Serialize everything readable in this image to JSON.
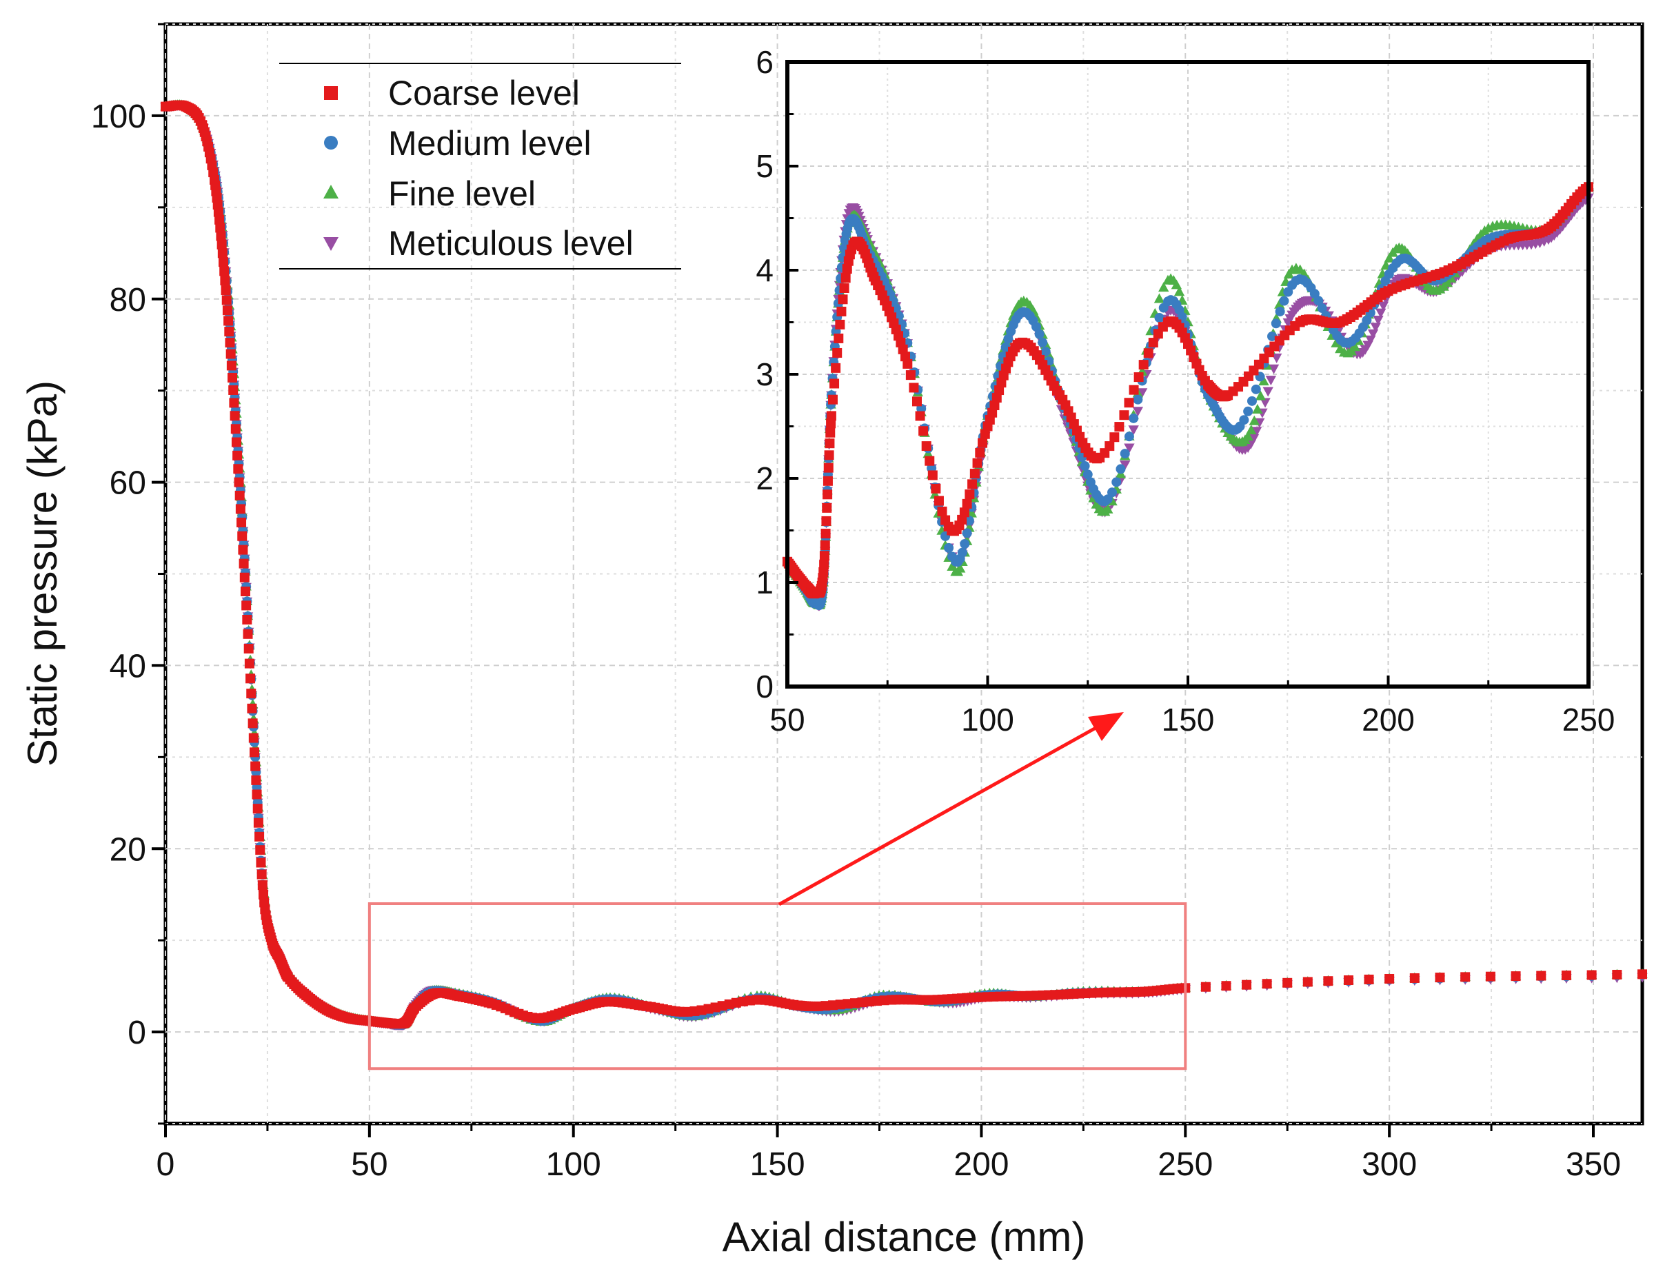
{
  "colors": {
    "coarse": "#e41a1c",
    "medium": "#3a7dc1",
    "fine": "#4db047",
    "meticulous": "#984ea3",
    "zoom_box": "#f08080",
    "arrow": "#ff1a1a"
  },
  "chart_data": [
    {
      "type": "scatter",
      "role": "main",
      "xlabel": "Axial distance (mm)",
      "ylabel": "Static pressure (kPa)",
      "xlim": [
        0,
        362
      ],
      "ylim": [
        -10,
        110
      ],
      "xticks": [
        0,
        50,
        100,
        150,
        200,
        250,
        300,
        350
      ],
      "yticks": [
        0,
        20,
        40,
        60,
        80,
        100
      ],
      "grid": true,
      "legend": {
        "position": "top-left",
        "entries": [
          {
            "key": "coarse",
            "label": "Coarse level",
            "marker": "square"
          },
          {
            "key": "medium",
            "label": "Medium level",
            "marker": "circle"
          },
          {
            "key": "fine",
            "label": "Fine level",
            "marker": "triangle-up"
          },
          {
            "key": "meticulous",
            "label": "Meticulous level",
            "marker": "triangle-down"
          }
        ]
      },
      "zoom_box": {
        "x": [
          50,
          250
        ],
        "y": [
          -4,
          14
        ]
      },
      "series": [
        {
          "key": "meticulous",
          "name": "Meticulous level",
          "x": [
            0,
            5,
            9,
            12,
            14,
            16,
            18,
            20,
            22,
            24,
            26,
            28,
            30,
            35,
            40,
            45,
            50,
            55,
            57,
            59,
            61,
            65,
            70,
            80,
            92,
            100,
            109,
            120,
            130,
            145,
            155,
            165,
            175,
            182,
            193,
            202,
            212,
            225,
            240,
            250,
            300,
            362
          ],
          "y": [
            101,
            101,
            99,
            94,
            87,
            76,
            62,
            47,
            30,
            15,
            10,
            8,
            6,
            3.8,
            2.3,
            1.5,
            1.2,
            0.9,
            0.8,
            1.0,
            2.8,
            4.5,
            4.3,
            3.3,
            1.2,
            2.5,
            3.6,
            2.5,
            1.7,
            3.6,
            2.8,
            2.3,
            3.5,
            3.7,
            3.2,
            3.9,
            3.8,
            4.2,
            4.3,
            4.7,
            5.6,
            6.0
          ]
        },
        {
          "key": "fine",
          "name": "Fine level",
          "x": [
            0,
            5,
            9,
            12,
            14,
            16,
            18,
            20,
            22,
            24,
            26,
            28,
            30,
            35,
            40,
            45,
            50,
            55,
            57,
            59,
            61,
            65,
            70,
            80,
            92,
            100,
            109,
            120,
            130,
            145,
            155,
            165,
            176,
            190,
            202,
            212,
            225,
            240,
            250,
            300,
            362
          ],
          "y": [
            101,
            101,
            99,
            94,
            87,
            77,
            63,
            47,
            31,
            16,
            10.5,
            8.5,
            6.5,
            4.0,
            2.5,
            1.6,
            1.2,
            0.9,
            0.8,
            1.0,
            2.8,
            4.4,
            4.3,
            3.3,
            1.1,
            2.6,
            3.7,
            2.6,
            1.7,
            3.9,
            2.8,
            2.4,
            4.0,
            3.2,
            4.2,
            3.8,
            4.4,
            4.4,
            4.8,
            5.8,
            6.3
          ]
        },
        {
          "key": "medium",
          "name": "Medium level",
          "x": [
            0,
            5,
            9,
            12,
            14,
            16,
            18,
            20,
            22,
            24,
            26,
            28,
            30,
            35,
            40,
            45,
            50,
            55,
            57,
            59,
            61,
            65,
            70,
            80,
            92,
            100,
            109,
            120,
            130,
            145,
            155,
            163,
            177,
            190,
            203,
            212,
            225,
            240,
            250,
            300,
            362
          ],
          "y": [
            101,
            101,
            99,
            94,
            87,
            76,
            62,
            47,
            30,
            15,
            10,
            8,
            6,
            3.9,
            2.4,
            1.5,
            1.2,
            0.9,
            0.8,
            1.0,
            2.8,
            4.4,
            4.2,
            3.3,
            1.2,
            2.6,
            3.6,
            2.6,
            1.8,
            3.7,
            2.8,
            2.5,
            3.9,
            3.3,
            4.1,
            3.9,
            4.3,
            4.4,
            4.8,
            5.7,
            6.2
          ]
        },
        {
          "key": "coarse",
          "name": "Coarse level",
          "x": [
            0,
            5,
            9,
            12,
            14,
            16,
            18,
            20,
            22,
            24,
            26,
            28,
            30,
            35,
            40,
            45,
            50,
            55,
            57,
            59,
            61,
            66,
            72,
            80,
            91,
            100,
            108,
            118,
            128,
            145,
            155,
            160,
            178,
            188,
            200,
            215,
            230,
            240,
            250,
            300,
            362
          ],
          "y": [
            101,
            101,
            99,
            93,
            85,
            74,
            60,
            45,
            29,
            15,
            10,
            8,
            6,
            3.8,
            2.3,
            1.5,
            1.2,
            0.95,
            0.9,
            1.1,
            2.6,
            4.2,
            3.9,
            3.1,
            1.5,
            2.5,
            3.3,
            2.8,
            2.2,
            3.5,
            2.9,
            2.8,
            3.5,
            3.5,
            3.8,
            4.0,
            4.3,
            4.4,
            4.8,
            5.8,
            6.3
          ]
        }
      ]
    },
    {
      "type": "scatter",
      "role": "inset",
      "xlim": [
        50,
        250
      ],
      "ylim": [
        0,
        6
      ],
      "xticks": [
        50,
        100,
        150,
        200,
        250
      ],
      "yticks": [
        0,
        1,
        2,
        3,
        4,
        5,
        6
      ],
      "grid": true,
      "series_ref": "same as main series, zoomed to x 50-250 and y 0-6"
    }
  ]
}
